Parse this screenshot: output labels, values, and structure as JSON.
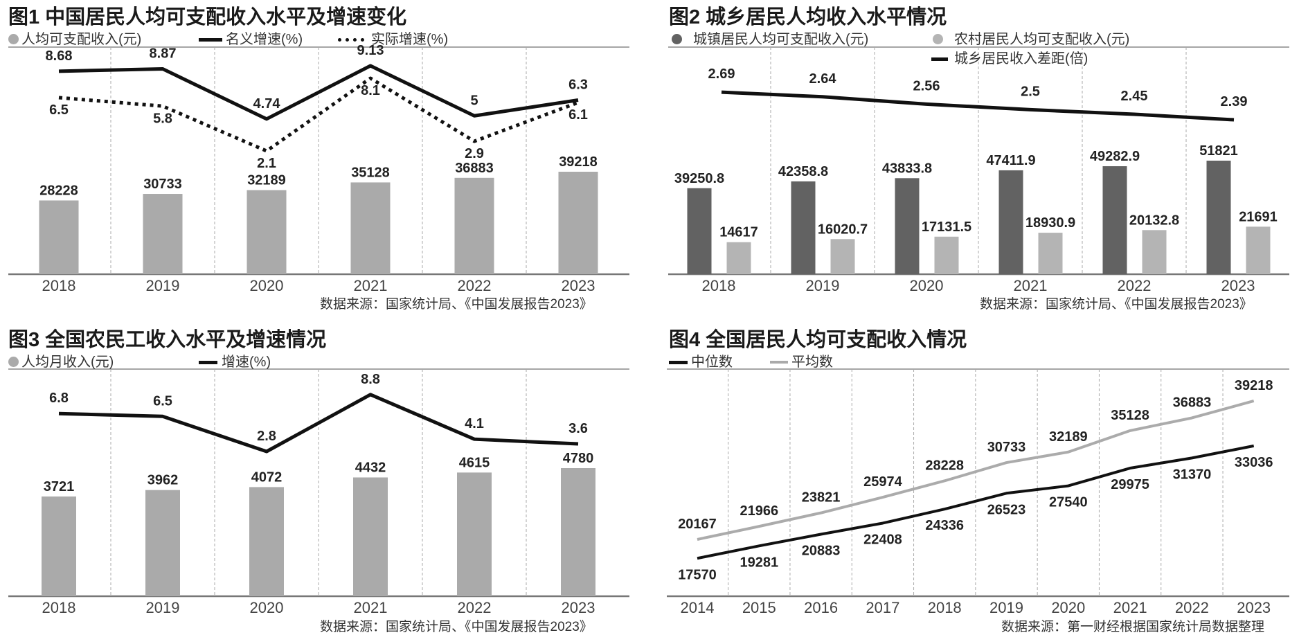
{
  "colors": {
    "bar_gray": "#aaaaaa",
    "bar_dark": "#626262",
    "bar_light": "#b4b4b4",
    "line_black": "#111111",
    "line_gray": "#ababab"
  },
  "chart_data": [
    {
      "type": "bar+line",
      "title": "图1 中国居民人均可支配收入水平及增速变化",
      "categories": [
        "2018",
        "2019",
        "2020",
        "2021",
        "2022",
        "2023"
      ],
      "series": [
        {
          "name": "人均可支配收入(元)",
          "type": "bar",
          "color": "#aaaaaa",
          "values": [
            28228,
            30733,
            32189,
            35128,
            36883,
            39218
          ],
          "labels": [
            "28228",
            "30733",
            "32189",
            "35128",
            "36883",
            "39218"
          ]
        },
        {
          "name": "名义增速(%)",
          "type": "line",
          "style": "solid",
          "values": [
            8.68,
            8.87,
            4.74,
            9.13,
            5,
            6.3
          ],
          "labels": [
            "8.68",
            "8.87",
            "4.74",
            "9.13",
            "5",
            "6.3"
          ]
        },
        {
          "name": "实际增速(%)",
          "type": "line",
          "style": "dotted",
          "values": [
            6.5,
            5.8,
            2.1,
            8.1,
            2.9,
            6.1
          ],
          "labels": [
            "6.5",
            "5.8",
            "2.1",
            "8.1",
            "2.9",
            "6.1"
          ]
        }
      ],
      "legend_placement": "top-left",
      "grid": "vertical dashed",
      "source": "数据来源：国家统计局、《中国发展报告2023》"
    },
    {
      "type": "grouped-bar+line",
      "title": "图2 城乡居民人均收入水平情况",
      "categories": [
        "2018",
        "2019",
        "2020",
        "2021",
        "2022",
        "2023"
      ],
      "series": [
        {
          "name": "城镇居民人均可支配收入(元)",
          "type": "bar",
          "color": "#626262",
          "values": [
            39250.8,
            42358.8,
            43833.8,
            47411.9,
            49282.9,
            51821
          ],
          "labels": [
            "39250.8",
            "42358.8",
            "43833.8",
            "47411.9",
            "49282.9",
            "51821"
          ]
        },
        {
          "name": "农村居民人均可支配收入(元)",
          "type": "bar",
          "color": "#b4b4b4",
          "values": [
            14617,
            16020.7,
            17131.5,
            18930.9,
            20132.8,
            21691
          ],
          "labels": [
            "14617",
            "16020.7",
            "17131.5",
            "18930.9",
            "20132.8",
            "21691"
          ]
        },
        {
          "name": "城乡居民收入差距(倍)",
          "type": "line",
          "style": "solid",
          "values": [
            2.69,
            2.64,
            2.56,
            2.5,
            2.45,
            2.39
          ],
          "labels": [
            "2.69",
            "2.64",
            "2.56",
            "2.5",
            "2.45",
            "2.39"
          ]
        }
      ],
      "legend_placement": "top",
      "grid": "vertical dashed",
      "source": "数据来源：国家统计局、《中国发展报告2023》"
    },
    {
      "type": "bar+line",
      "title": "图3 全国农民工收入水平及增速情况",
      "categories": [
        "2018",
        "2019",
        "2020",
        "2021",
        "2022",
        "2023"
      ],
      "series": [
        {
          "name": "人均月收入(元)",
          "type": "bar",
          "color": "#aaaaaa",
          "values": [
            3721,
            3962,
            4072,
            4432,
            4615,
            4780
          ],
          "labels": [
            "3721",
            "3962",
            "4072",
            "4432",
            "4615",
            "4780"
          ]
        },
        {
          "name": "增速(%)",
          "type": "line",
          "style": "solid",
          "values": [
            6.8,
            6.5,
            2.8,
            8.8,
            4.1,
            3.6
          ],
          "labels": [
            "6.8",
            "6.5",
            "2.8",
            "8.8",
            "4.1",
            "3.6"
          ]
        }
      ],
      "legend_placement": "top-left",
      "grid": "vertical dashed",
      "source": "数据来源：国家统计局、《中国发展报告2023》"
    },
    {
      "type": "line",
      "title": "图4 全国居民人均可支配收入情况",
      "categories": [
        "2014",
        "2015",
        "2016",
        "2017",
        "2018",
        "2019",
        "2020",
        "2021",
        "2022",
        "2023"
      ],
      "series": [
        {
          "name": "中位数",
          "type": "line",
          "color": "#111111",
          "values": [
            17570,
            19281,
            20883,
            22408,
            24336,
            26523,
            27540,
            29975,
            31370,
            33036
          ],
          "labels": [
            "17570",
            "19281",
            "20883",
            "22408",
            "24336",
            "26523",
            "27540",
            "29975",
            "31370",
            "33036"
          ]
        },
        {
          "name": "平均数",
          "type": "line",
          "color": "#ababab",
          "values": [
            20167,
            21966,
            23821,
            25974,
            28228,
            30733,
            32189,
            35128,
            36883,
            39218
          ],
          "labels": [
            "20167",
            "21966",
            "23821",
            "25974",
            "28228",
            "30733",
            "32189",
            "35128",
            "36883",
            "39218"
          ]
        }
      ],
      "legend_placement": "top-left",
      "grid": "vertical dashed",
      "source": "数据来源：第一财经根据国家统计局数据整理"
    }
  ]
}
